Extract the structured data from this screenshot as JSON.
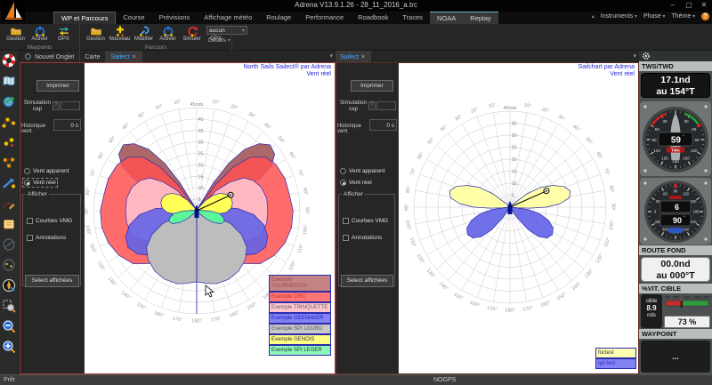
{
  "window": {
    "title": "Adrena V13.9.1.26 - 28_11_2016_a.trc",
    "minimize": "–",
    "maximize": "▢",
    "close": "✕"
  },
  "menu": {
    "tabs": [
      {
        "label": "WP et Parcours",
        "active": true
      },
      {
        "label": "Course"
      },
      {
        "label": "Prévisions"
      },
      {
        "label": "Affichage météo"
      },
      {
        "label": "Roulage"
      },
      {
        "label": "Performance"
      },
      {
        "label": "Roadbook"
      },
      {
        "label": "Traces"
      },
      {
        "label": "NOAA",
        "light": true
      },
      {
        "label": "Replay",
        "light": true
      }
    ],
    "right_items": [
      "Instruments",
      "Phase",
      "Thème"
    ],
    "collapse_icon": "▴",
    "chevron": "▾",
    "help": "?"
  },
  "ribbon": {
    "groups": [
      {
        "label": "Waypoints",
        "buttons": [
          {
            "label": "Gestion",
            "icon": "folder"
          },
          {
            "label": "Activer",
            "icon": "power"
          },
          {
            "label": "GPX",
            "icon": "gpx"
          }
        ]
      },
      {
        "label": "Parcours",
        "buttons": [
          {
            "label": "Gestion",
            "icon": "folder"
          },
          {
            "label": "Nouveau",
            "icon": "plus"
          },
          {
            "label": "Modifier",
            "icon": "wrench"
          },
          {
            "label": "Activer",
            "icon": "power"
          },
          {
            "label": "Simuler",
            "icon": "simulate"
          },
          {
            "label": "GPX",
            "icon": "gpx"
          }
        ]
      }
    ],
    "combo_value": "aucun",
    "details_label": "Détails"
  },
  "sidebar": {
    "icons": [
      "lifering",
      "map",
      "globe-route",
      "route-plan",
      "waypoints",
      "waypoint-lines",
      "bearing-arrow",
      "draw-route",
      "notes",
      "circle-dim",
      "circle-dots",
      "compass-tool",
      "zoom-area",
      "zoom-out",
      "zoom-in"
    ]
  },
  "panels": [
    {
      "tabs": [
        {
          "label": "Nouvel Onglet",
          "icon": "new-tab"
        },
        {
          "label": "Carte"
        },
        {
          "label": "Sailect",
          "close": true,
          "active": true
        }
      ],
      "controls": {
        "print": "Imprimer",
        "sim_label": "Simulation cap",
        "sim_help": "?",
        "hist_label": "Historique vent",
        "hist_value": "0 s",
        "radio_apparent": "Vent apparent",
        "radio_real": "Vent réel",
        "group_label": "Afficher",
        "chk_vmg": "Courbes VMG",
        "chk_annotations": "Annotations",
        "select_button": "Select affichées"
      }
    },
    {
      "tabs": [
        {
          "label": "Sailect",
          "close": true,
          "active": true
        }
      ],
      "controls": {
        "print": "Imprimer",
        "sim_label": "Simulation cap",
        "sim_help": "?",
        "hist_label": "Historique vent",
        "hist_value": "0 s",
        "radio_apparent": "Vent apparent",
        "radio_real": "Vent réel",
        "group_label": "Afficher",
        "chk_vmg": "Courbes VMG",
        "chk_annotations": "Annotations",
        "select_button": "Select affichées"
      }
    }
  ],
  "chart_data": [
    {
      "type": "polar",
      "title": "North Sails Sailect® par Adrena",
      "subtitle": "Vent réel",
      "radial_unit": "nds",
      "radial_max": 45,
      "radial_max_label": "45nds",
      "radial_ticks": [
        5,
        10,
        15,
        20,
        25,
        30,
        35,
        40
      ],
      "angle_label_step": 10,
      "angle_label_max": 180,
      "heading_line": true,
      "cursor": {
        "angle": 65,
        "radius": 16.3
      },
      "series": [
        {
          "name": "Exemple TOURMENTIN",
          "fill": "#a86060",
          "opacity": 0.95,
          "legend_bg": "#c48484",
          "legend_fg": "#a04a4a",
          "lobes": [
            [
              [
                28,
                3
              ],
              [
                31,
                14
              ],
              [
                34,
                25
              ],
              [
                38,
                34
              ],
              [
                43,
                40
              ],
              [
                48,
                43
              ],
              [
                54,
                42
              ],
              [
                59,
                38
              ],
              [
                63,
                31
              ],
              [
                66,
                23
              ],
              [
                69,
                13
              ],
              [
                71,
                4
              ]
            ],
            [
              [
                147,
                3
              ],
              [
                151,
                12
              ],
              [
                155,
                19
              ],
              [
                160,
                24
              ],
              [
                165,
                25
              ],
              [
                169,
                21
              ],
              [
                172,
                14
              ],
              [
                175,
                6
              ]
            ]
          ]
        },
        {
          "name": "Exemple ORC",
          "fill": "#ff5252",
          "opacity": 0.85,
          "legend_bg": "#ff7474",
          "legend_fg": "#c83a3a",
          "lobes": [
            [
              [
                33,
                3
              ],
              [
                36,
                14
              ],
              [
                40,
                25
              ],
              [
                45,
                33
              ],
              [
                52,
                38
              ],
              [
                60,
                40
              ],
              [
                70,
                41
              ],
              [
                80,
                41
              ],
              [
                90,
                42
              ],
              [
                100,
                42
              ],
              [
                110,
                41
              ],
              [
                120,
                39
              ],
              [
                130,
                36
              ],
              [
                138,
                31
              ],
              [
                145,
                25
              ],
              [
                151,
                17
              ],
              [
                156,
                8
              ],
              [
                158,
                3
              ]
            ]
          ]
        },
        {
          "name": "Exemple TRINQUETTE",
          "fill": "#ffb8c2",
          "opacity": 1,
          "legend_bg": "#ffc6ce",
          "legend_fg": "#666666",
          "lobes": [
            [
              [
                40,
                3
              ],
              [
                44,
                12
              ],
              [
                49,
                19
              ],
              [
                55,
                25
              ],
              [
                62,
                28
              ],
              [
                70,
                30
              ],
              [
                80,
                31
              ],
              [
                90,
                31
              ],
              [
                100,
                31
              ],
              [
                110,
                30
              ],
              [
                118,
                27
              ],
              [
                126,
                23
              ],
              [
                133,
                17
              ],
              [
                139,
                9
              ],
              [
                142,
                3
              ]
            ]
          ]
        },
        {
          "name": "Exemple GEENAKER",
          "fill": "#6464e6",
          "opacity": 0.9,
          "legend_bg": "#8282f2",
          "legend_fg": "#1c1ccc",
          "lobes": [
            [
              [
                76,
                2
              ],
              [
                81,
                10
              ],
              [
                87,
                18
              ],
              [
                94,
                25
              ],
              [
                102,
                30
              ],
              [
                110,
                33
              ],
              [
                118,
                34
              ],
              [
                126,
                32
              ],
              [
                134,
                28
              ],
              [
                141,
                21
              ],
              [
                147,
                12
              ],
              [
                151,
                4
              ]
            ]
          ]
        },
        {
          "name": "Exemple SPI LOURD",
          "fill": "#bdbdbd",
          "opacity": 1,
          "legend_bg": "#c9c9c9",
          "legend_fg": "#555555",
          "lobes": [
            [
              [
                100,
                2
              ],
              [
                105,
                9
              ],
              [
                111,
                16
              ],
              [
                118,
                22
              ],
              [
                126,
                27
              ],
              [
                135,
                30
              ],
              [
                145,
                32
              ],
              [
                155,
                33
              ],
              [
                165,
                33
              ],
              [
                172,
                32
              ],
              [
                180,
                31
              ]
            ]
          ]
        },
        {
          "name": "Exemple GENOIS",
          "fill": "#ffff55",
          "opacity": 1,
          "legend_bg": "#ffff85",
          "legend_fg": "#333333",
          "lobes": [
            [
              [
                36,
                2
              ],
              [
                41,
                6
              ],
              [
                47,
                10
              ],
              [
                54,
                13
              ],
              [
                62,
                15
              ],
              [
                70,
                16
              ],
              [
                78,
                16
              ],
              [
                86,
                15
              ],
              [
                93,
                13
              ],
              [
                100,
                9
              ],
              [
                106,
                5
              ],
              [
                109,
                2
              ]
            ]
          ]
        },
        {
          "name": "Exemple SPI LEGER",
          "fill": "#5cf59b",
          "opacity": 1,
          "legend_bg": "#8cf7b8",
          "legend_fg": "#333333",
          "lobes": [
            [
              [
                86,
                2
              ],
              [
                91,
                6
              ],
              [
                97,
                10
              ],
              [
                104,
                12
              ],
              [
                111,
                13
              ],
              [
                118,
                12
              ],
              [
                125,
                9
              ],
              [
                131,
                5
              ],
              [
                135,
                2
              ]
            ]
          ]
        }
      ]
    },
    {
      "type": "polar",
      "title": "Sailchart par Adrena",
      "subtitle": "Vent réel",
      "radial_unit": "nds",
      "radial_max": 40,
      "radial_max_label": "40nds",
      "radial_ticks": [
        5,
        10,
        15,
        20,
        25,
        30,
        35
      ],
      "angle_label_step": 10,
      "angle_label_max": 180,
      "heading_line": false,
      "cursor": {
        "angle": 66,
        "radius": 16.6
      },
      "series": [
        {
          "name": "foctest",
          "fill": "#ffffa8",
          "opacity": 1,
          "legend_bg": "#ffffb0",
          "legend_fg": "#333333",
          "lobes": [
            [
              [
                47,
                2
              ],
              [
                52,
                9
              ],
              [
                57,
                15
              ],
              [
                63,
                20
              ],
              [
                69,
                24
              ],
              [
                75,
                26
              ],
              [
                81,
                25
              ],
              [
                86,
                21
              ],
              [
                90,
                15
              ],
              [
                93,
                8
              ],
              [
                95,
                3
              ]
            ]
          ]
        },
        {
          "name": "spi test",
          "fill": "#6464e6",
          "opacity": 0.92,
          "legend_bg": "#8282f2",
          "legend_fg": "#2828c8",
          "lobes": [
            [
              [
                94,
                2
              ],
              [
                98,
                8
              ],
              [
                103,
                13
              ],
              [
                109,
                17
              ],
              [
                116,
                20
              ],
              [
                123,
                21
              ],
              [
                130,
                20
              ],
              [
                136,
                17
              ],
              [
                141,
                12
              ],
              [
                145,
                6
              ],
              [
                147,
                2
              ]
            ]
          ]
        }
      ]
    }
  ],
  "instruments": {
    "tws": {
      "label": "TWS/TWD",
      "line1": "17.1nd",
      "line2": "au 154°T"
    },
    "twa_gauge": {
      "value": "59",
      "unit": "°",
      "tag": "TWA",
      "pointer_deg": 59,
      "tick_labels": [
        30,
        60,
        90,
        120,
        150,
        180
      ]
    },
    "compass_gauge": {
      "value_top": "6",
      "value_bottom": "90",
      "unit_bottom": "°",
      "top_at_deg": 90,
      "tick_labels": [
        0,
        30,
        60,
        90,
        120,
        150,
        180,
        210,
        240,
        270,
        300,
        330
      ]
    },
    "route": {
      "label": "ROUTE FOND",
      "line1": "00.0nd",
      "line2": "au 000°T"
    },
    "target_speed": {
      "label": "%VIT. CIBLE",
      "cible_label": "cible",
      "cible_value": "8.9",
      "cible_unit": "nds",
      "scale_labels": [
        "0%",
        "50%",
        "100%",
        "150%",
        "200%"
      ],
      "scale_max_pct": 200,
      "value_pct": 73,
      "display": "73 %"
    },
    "waypoint": {
      "label": "WAYPOINT",
      "empty": "..."
    }
  },
  "status": {
    "left": "Prêt",
    "center": "NOGPS"
  }
}
